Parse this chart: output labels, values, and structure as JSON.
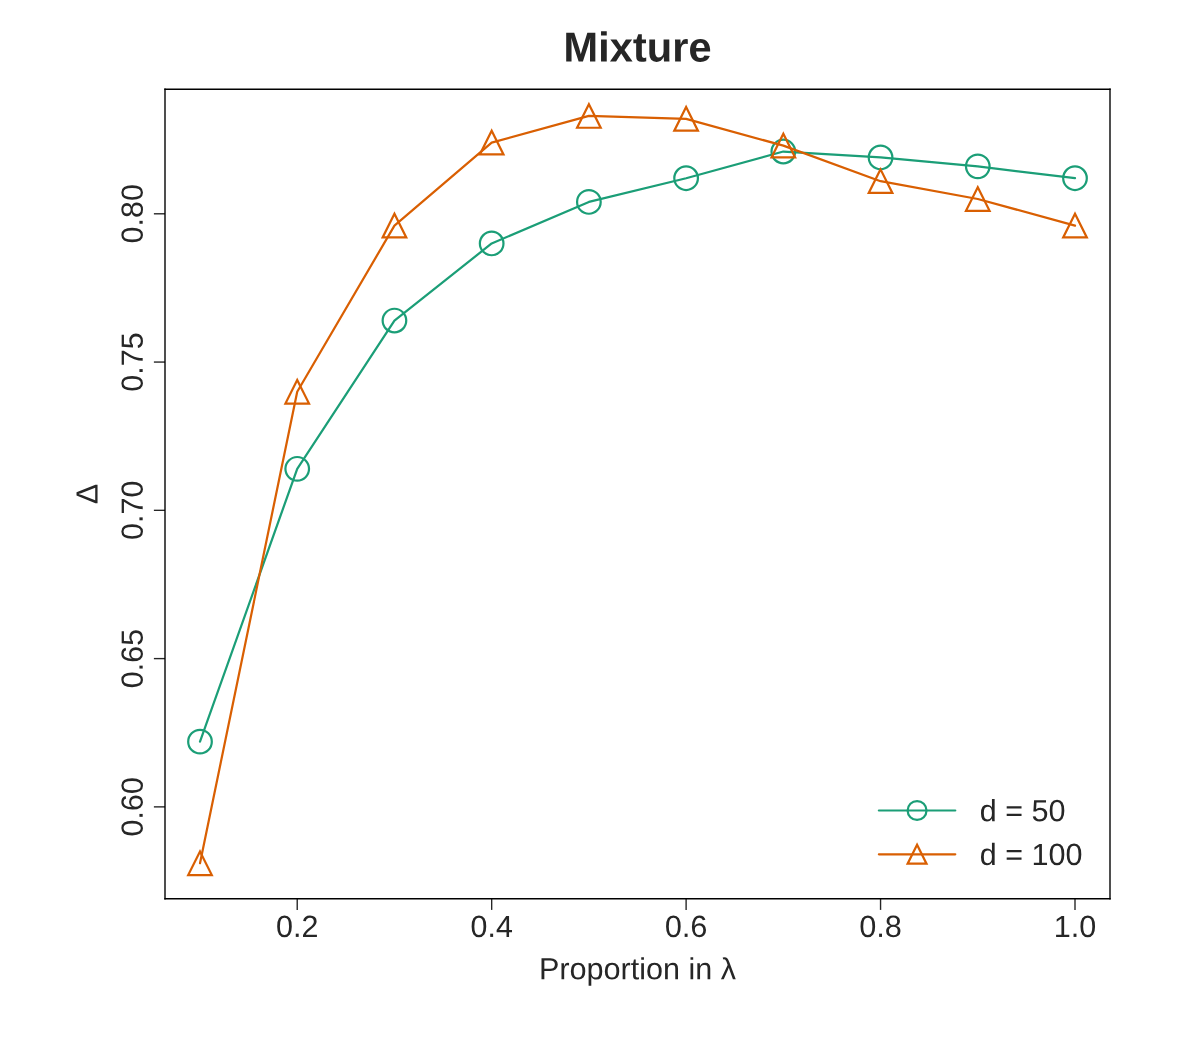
{
  "chart_data": {
    "type": "line",
    "title": "Mixture",
    "xlabel": "Proportion in λ",
    "ylabel": "Δ",
    "x": [
      0.1,
      0.2,
      0.3,
      0.4,
      0.5,
      0.6,
      0.7,
      0.8,
      0.9,
      1.0
    ],
    "series": [
      {
        "name": "d = 50",
        "color": "#1b9e77",
        "marker": "circle",
        "values": [
          0.622,
          0.714,
          0.764,
          0.79,
          0.804,
          0.812,
          0.821,
          0.819,
          0.816,
          0.812
        ]
      },
      {
        "name": "d = 100",
        "color": "#d95f02",
        "marker": "triangle",
        "values": [
          0.581,
          0.74,
          0.796,
          0.824,
          0.833,
          0.832,
          0.823,
          0.811,
          0.805,
          0.796
        ]
      }
    ],
    "xlim": [
      0.064,
      1.036
    ],
    "ylim": [
      0.569,
      0.842
    ],
    "xticks": [
      {
        "value": 0.2,
        "label": "0.2"
      },
      {
        "value": 0.4,
        "label": "0.4"
      },
      {
        "value": 0.6,
        "label": "0.6"
      },
      {
        "value": 0.8,
        "label": "0.8"
      },
      {
        "value": 1.0,
        "label": "1.0"
      }
    ],
    "yticks": [
      {
        "value": 0.6,
        "label": "0.60"
      },
      {
        "value": 0.65,
        "label": "0.65"
      },
      {
        "value": 0.7,
        "label": "0.70"
      },
      {
        "value": 0.75,
        "label": "0.75"
      },
      {
        "value": 0.8,
        "label": "0.80"
      }
    ],
    "grid": false,
    "legend": "bottom right",
    "line_style": "solid"
  }
}
